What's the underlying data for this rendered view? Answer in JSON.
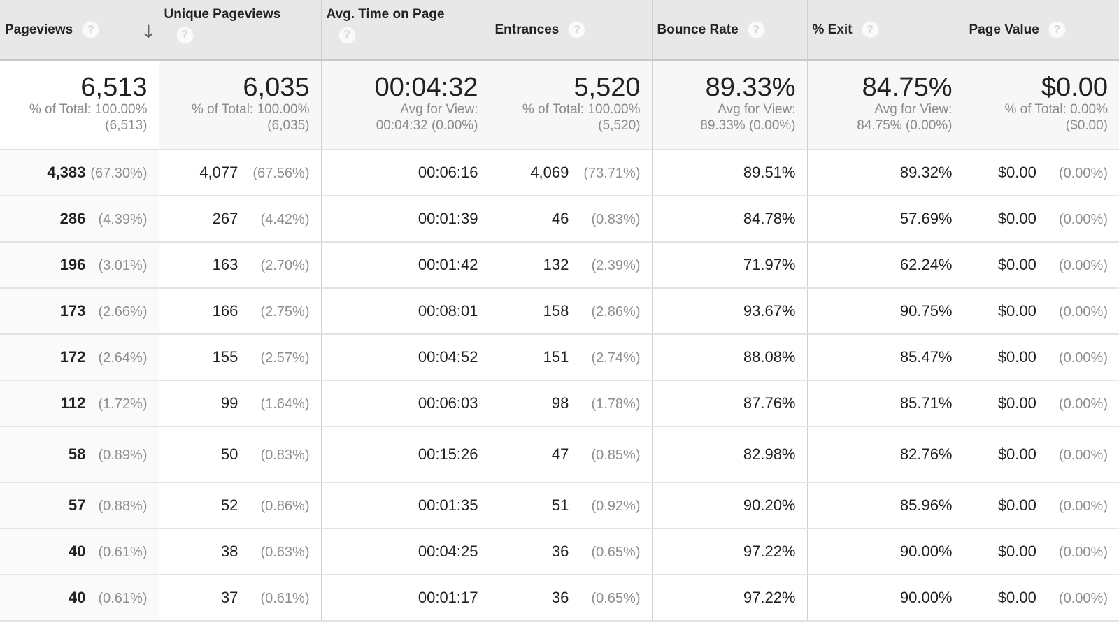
{
  "columns": [
    {
      "label": "Pageviews",
      "help_icon": "question-circle-icon",
      "sort_icon": "arrow-down-icon",
      "sorted": "descending"
    },
    {
      "label": "Unique Pageviews",
      "help_icon": "question-circle-icon"
    },
    {
      "label": "Avg. Time on Page",
      "help_icon": "question-circle-icon"
    },
    {
      "label": "Entrances",
      "help_icon": "question-circle-icon"
    },
    {
      "label": "Bounce Rate",
      "help_icon": "question-circle-icon"
    },
    {
      "label": "% Exit",
      "help_icon": "question-circle-icon"
    },
    {
      "label": "Page Value",
      "help_icon": "question-circle-icon"
    }
  ],
  "help_glyph": "?",
  "sort_glyph": "🡓",
  "summary": [
    {
      "value": "6,513",
      "line1": "% of Total: 100.00%",
      "line2": "(6,513)"
    },
    {
      "value": "6,035",
      "line1": "% of Total: 100.00%",
      "line2": "(6,035)"
    },
    {
      "value": "00:04:32",
      "line1": "Avg for View:",
      "line2": "00:04:32 (0.00%)"
    },
    {
      "value": "5,520",
      "line1": "% of Total: 100.00%",
      "line2": "(5,520)"
    },
    {
      "value": "89.33%",
      "line1": "Avg for View:",
      "line2": "89.33% (0.00%)"
    },
    {
      "value": "84.75%",
      "line1": "Avg for View:",
      "line2": "84.75% (0.00%)"
    },
    {
      "value": "$0.00",
      "line1": "% of Total: 0.00%",
      "line2": "($0.00)"
    }
  ],
  "rows": [
    {
      "pageviews": "4,383",
      "pageviews_pct": "(67.30%)",
      "unique": "4,077",
      "unique_pct": "(67.56%)",
      "avg_time": "00:06:16",
      "entrances": "4,069",
      "entrances_pct": "(73.71%)",
      "bounce": "89.51%",
      "exit": "89.32%",
      "value": "$0.00",
      "value_pct": "(0.00%)"
    },
    {
      "pageviews": "286",
      "pageviews_pct": "(4.39%)",
      "unique": "267",
      "unique_pct": "(4.42%)",
      "avg_time": "00:01:39",
      "entrances": "46",
      "entrances_pct": "(0.83%)",
      "bounce": "84.78%",
      "exit": "57.69%",
      "value": "$0.00",
      "value_pct": "(0.00%)"
    },
    {
      "pageviews": "196",
      "pageviews_pct": "(3.01%)",
      "unique": "163",
      "unique_pct": "(2.70%)",
      "avg_time": "00:01:42",
      "entrances": "132",
      "entrances_pct": "(2.39%)",
      "bounce": "71.97%",
      "exit": "62.24%",
      "value": "$0.00",
      "value_pct": "(0.00%)"
    },
    {
      "pageviews": "173",
      "pageviews_pct": "(2.66%)",
      "unique": "166",
      "unique_pct": "(2.75%)",
      "avg_time": "00:08:01",
      "entrances": "158",
      "entrances_pct": "(2.86%)",
      "bounce": "93.67%",
      "exit": "90.75%",
      "value": "$0.00",
      "value_pct": "(0.00%)"
    },
    {
      "pageviews": "172",
      "pageviews_pct": "(2.64%)",
      "unique": "155",
      "unique_pct": "(2.57%)",
      "avg_time": "00:04:52",
      "entrances": "151",
      "entrances_pct": "(2.74%)",
      "bounce": "88.08%",
      "exit": "85.47%",
      "value": "$0.00",
      "value_pct": "(0.00%)"
    },
    {
      "pageviews": "112",
      "pageviews_pct": "(1.72%)",
      "unique": "99",
      "unique_pct": "(1.64%)",
      "avg_time": "00:06:03",
      "entrances": "98",
      "entrances_pct": "(1.78%)",
      "bounce": "87.76%",
      "exit": "85.71%",
      "value": "$0.00",
      "value_pct": "(0.00%)"
    },
    {
      "pageviews": "58",
      "pageviews_pct": "(0.89%)",
      "unique": "50",
      "unique_pct": "(0.83%)",
      "avg_time": "00:15:26",
      "entrances": "47",
      "entrances_pct": "(0.85%)",
      "bounce": "82.98%",
      "exit": "82.76%",
      "value": "$0.00",
      "value_pct": "(0.00%)"
    },
    {
      "pageviews": "57",
      "pageviews_pct": "(0.88%)",
      "unique": "52",
      "unique_pct": "(0.86%)",
      "avg_time": "00:01:35",
      "entrances": "51",
      "entrances_pct": "(0.92%)",
      "bounce": "90.20%",
      "exit": "85.96%",
      "value": "$0.00",
      "value_pct": "(0.00%)"
    },
    {
      "pageviews": "40",
      "pageviews_pct": "(0.61%)",
      "unique": "38",
      "unique_pct": "(0.63%)",
      "avg_time": "00:04:25",
      "entrances": "36",
      "entrances_pct": "(0.65%)",
      "bounce": "97.22%",
      "exit": "90.00%",
      "value": "$0.00",
      "value_pct": "(0.00%)"
    },
    {
      "pageviews": "40",
      "pageviews_pct": "(0.61%)",
      "unique": "37",
      "unique_pct": "(0.61%)",
      "avg_time": "00:01:17",
      "entrances": "36",
      "entrances_pct": "(0.65%)",
      "bounce": "97.22%",
      "exit": "90.00%",
      "value": "$0.00",
      "value_pct": "(0.00%)"
    }
  ],
  "colors": {
    "header_bg": "#e8e8e8",
    "summary_bg": "#f7f7f7",
    "muted_text": "#8a8a8a",
    "border": "#cfcfcf"
  }
}
